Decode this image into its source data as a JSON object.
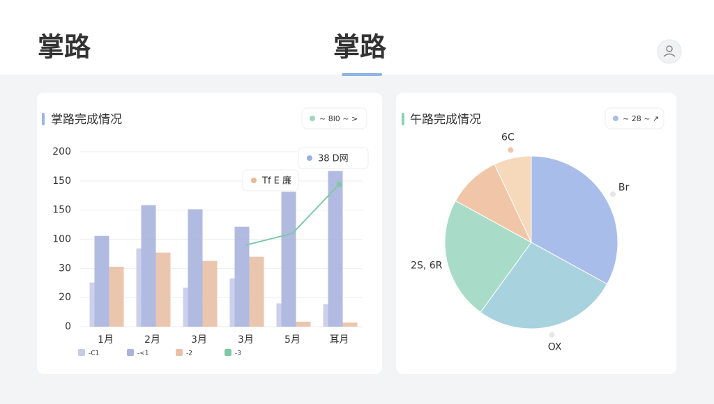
{
  "header": {
    "title": "掌路",
    "tab": "掌路"
  },
  "chart_data": [
    {
      "type": "bar",
      "title": "掌路完成情况",
      "control": "~ 8l0 ~ >",
      "categories": [
        "1月",
        "2月",
        "3月",
        "3月",
        "5月",
        "耳月"
      ],
      "series": [
        {
          "name": "-C1",
          "color": "#c7cbe8",
          "values": [
            53,
            94,
            47,
            58,
            28,
            27
          ]
        },
        {
          "name": "-<1",
          "color": "#a9b3de",
          "values": [
            109,
            146,
            141,
            120,
            162,
            187
          ]
        },
        {
          "name": "-2",
          "color": "#e9c0a6",
          "values": [
            72,
            89,
            79,
            84,
            6,
            5
          ]
        },
        {
          "name": "-3",
          "color": "#7fc8a6",
          "type": "line",
          "values": [
            null,
            null,
            null,
            98,
            112,
            171
          ]
        }
      ],
      "ylim": [
        0,
        210
      ],
      "yticks": [
        0,
        {
          "value": 35,
          "label": "20"
        },
        {
          "value": 70,
          "label": "30"
        },
        {
          "value": 105,
          "label": "100"
        },
        {
          "value": 140,
          "label": "150"
        },
        {
          "value": 175,
          "label": "150"
        },
        {
          "value": 210,
          "label": "200"
        }
      ],
      "grid": true,
      "annotations": [
        {
          "text": "38 D网",
          "color": "#9bb0dc"
        },
        {
          "text": "Tf E 廉",
          "color": "#e8b898"
        }
      ]
    },
    {
      "type": "pie",
      "title": "午路完成情况",
      "control": "~ 28 ~ ↗",
      "labels": [
        "Br",
        "OX",
        "2S, 6R",
        null,
        "6C"
      ],
      "values": [
        33,
        27,
        23,
        10,
        7
      ],
      "colors": [
        "#a8bde9",
        "#a9d2df",
        "#a9dcc8",
        "#f1c6a8",
        "#f6d8bb"
      ]
    }
  ]
}
